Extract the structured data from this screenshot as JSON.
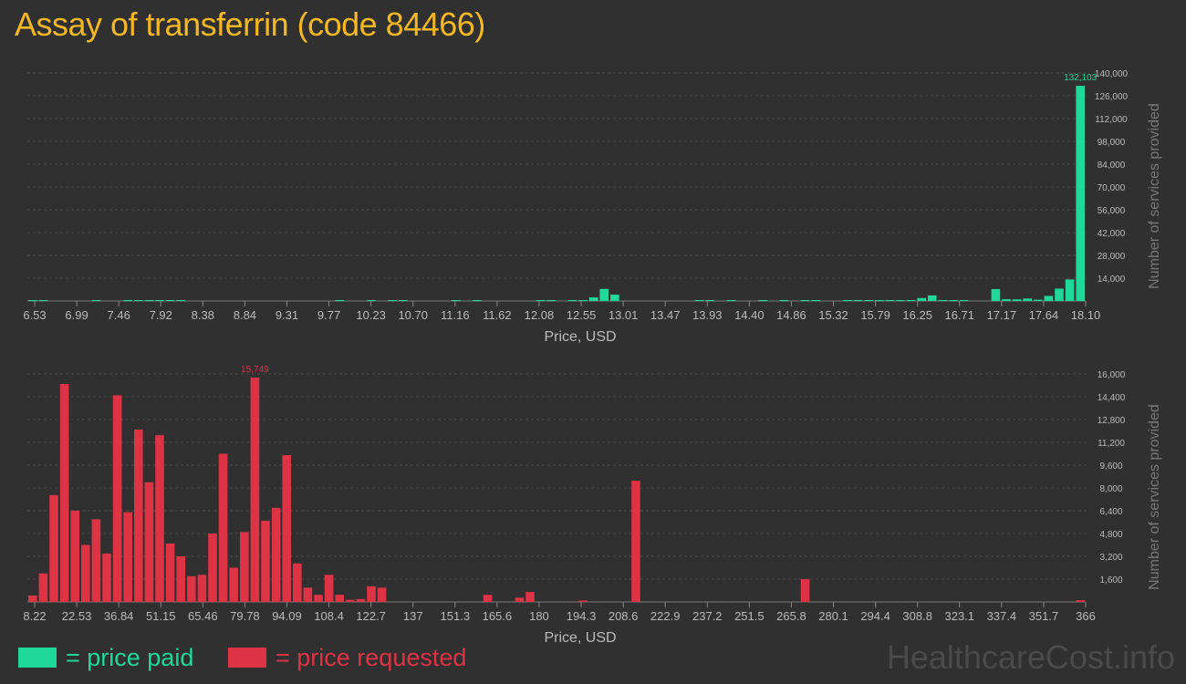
{
  "page": {
    "title": "Assay of transferrin (code 84466)"
  },
  "legend": {
    "paid_label": "= price paid",
    "requested_label": "= price requested",
    "paid_color": "#20d89a",
    "requested_color": "#dd3344"
  },
  "watermark": "HealthcareCost.info",
  "chart_data": [
    {
      "type": "bar",
      "name_hint": "paid",
      "color": "#20d89a",
      "xlabel": "Price, USD",
      "ylabel": "Number of services provided",
      "xlim": [
        6.53,
        18.1
      ],
      "ylim": [
        0,
        140000
      ],
      "x_ticks": [
        "6.53",
        "6.99",
        "7.46",
        "7.92",
        "8.38",
        "8.84",
        "9.31",
        "9.77",
        "10.23",
        "10.70",
        "11.16",
        "11.62",
        "12.08",
        "12.55",
        "13.01",
        "13.47",
        "13.93",
        "14.40",
        "14.86",
        "15.32",
        "15.79",
        "16.25",
        "16.71",
        "17.17",
        "17.64",
        "18.10"
      ],
      "y_ticks": [
        "14,000",
        "28,000",
        "42,000",
        "56,000",
        "70,000",
        "84,000",
        "98,000",
        "112,000",
        "126,000",
        "140,000"
      ],
      "peak_label": "132,103",
      "bin_count": 100,
      "bars": [
        {
          "bin": 0,
          "value": 500
        },
        {
          "bin": 1,
          "value": 400
        },
        {
          "bin": 6,
          "value": 300
        },
        {
          "bin": 9,
          "value": 300
        },
        {
          "bin": 10,
          "value": 300
        },
        {
          "bin": 11,
          "value": 300
        },
        {
          "bin": 12,
          "value": 300
        },
        {
          "bin": 13,
          "value": 300
        },
        {
          "bin": 14,
          "value": 300
        },
        {
          "bin": 29,
          "value": 200
        },
        {
          "bin": 32,
          "value": 200
        },
        {
          "bin": 34,
          "value": 200
        },
        {
          "bin": 35,
          "value": 200
        },
        {
          "bin": 40,
          "value": 200
        },
        {
          "bin": 42,
          "value": 200
        },
        {
          "bin": 48,
          "value": 300
        },
        {
          "bin": 49,
          "value": 300
        },
        {
          "bin": 51,
          "value": 200
        },
        {
          "bin": 52,
          "value": 200
        },
        {
          "bin": 53,
          "value": 2200
        },
        {
          "bin": 54,
          "value": 7400
        },
        {
          "bin": 55,
          "value": 3900
        },
        {
          "bin": 63,
          "value": 200
        },
        {
          "bin": 64,
          "value": 200
        },
        {
          "bin": 66,
          "value": 200
        },
        {
          "bin": 69,
          "value": 200
        },
        {
          "bin": 71,
          "value": 200
        },
        {
          "bin": 73,
          "value": 200
        },
        {
          "bin": 74,
          "value": 200
        },
        {
          "bin": 77,
          "value": 300
        },
        {
          "bin": 78,
          "value": 300
        },
        {
          "bin": 79,
          "value": 200
        },
        {
          "bin": 80,
          "value": 300
        },
        {
          "bin": 81,
          "value": 300
        },
        {
          "bin": 82,
          "value": 400
        },
        {
          "bin": 83,
          "value": 300
        },
        {
          "bin": 84,
          "value": 1800
        },
        {
          "bin": 85,
          "value": 3400
        },
        {
          "bin": 86,
          "value": 300
        },
        {
          "bin": 87,
          "value": 200
        },
        {
          "bin": 88,
          "value": 300
        },
        {
          "bin": 91,
          "value": 7300
        },
        {
          "bin": 92,
          "value": 1100
        },
        {
          "bin": 93,
          "value": 1000
        },
        {
          "bin": 94,
          "value": 1500
        },
        {
          "bin": 95,
          "value": 800
        },
        {
          "bin": 96,
          "value": 3100
        },
        {
          "bin": 97,
          "value": 7600
        },
        {
          "bin": 98,
          "value": 13200
        },
        {
          "bin": 99,
          "value": 132103
        }
      ]
    },
    {
      "type": "bar",
      "name_hint": "requested",
      "color": "#dd3344",
      "xlabel": "Price, USD",
      "ylabel": "Number of services provided",
      "xlim": [
        8.22,
        366
      ],
      "ylim": [
        0,
        16000
      ],
      "x_ticks": [
        "8.22",
        "22.53",
        "36.84",
        "51.15",
        "65.46",
        "79.78",
        "94.09",
        "108.4",
        "122.7",
        "137",
        "151.3",
        "165.6",
        "180",
        "194.3",
        "208.6",
        "222.9",
        "237.2",
        "251.5",
        "265.8",
        "280.1",
        "294.4",
        "308.8",
        "323.1",
        "337.4",
        "351.7",
        "366"
      ],
      "y_ticks": [
        "1,600",
        "3,200",
        "4,800",
        "6,400",
        "8,000",
        "9,600",
        "11,200",
        "12,800",
        "14,400",
        "16,000"
      ],
      "peak_label": "15,749",
      "bin_count": 100,
      "bars": [
        {
          "bin": 0,
          "value": 450
        },
        {
          "bin": 1,
          "value": 2000
        },
        {
          "bin": 2,
          "value": 7500
        },
        {
          "bin": 3,
          "value": 15300
        },
        {
          "bin": 4,
          "value": 6400
        },
        {
          "bin": 5,
          "value": 4000
        },
        {
          "bin": 6,
          "value": 5800
        },
        {
          "bin": 7,
          "value": 3400
        },
        {
          "bin": 8,
          "value": 14500
        },
        {
          "bin": 9,
          "value": 6300
        },
        {
          "bin": 10,
          "value": 12100
        },
        {
          "bin": 11,
          "value": 8400
        },
        {
          "bin": 12,
          "value": 11700
        },
        {
          "bin": 13,
          "value": 4100
        },
        {
          "bin": 14,
          "value": 3200
        },
        {
          "bin": 15,
          "value": 1800
        },
        {
          "bin": 16,
          "value": 1900
        },
        {
          "bin": 17,
          "value": 4800
        },
        {
          "bin": 18,
          "value": 10400
        },
        {
          "bin": 19,
          "value": 2400
        },
        {
          "bin": 20,
          "value": 4900
        },
        {
          "bin": 21,
          "value": 15749
        },
        {
          "bin": 22,
          "value": 5700
        },
        {
          "bin": 23,
          "value": 6600
        },
        {
          "bin": 24,
          "value": 10300
        },
        {
          "bin": 25,
          "value": 2700
        },
        {
          "bin": 26,
          "value": 1000
        },
        {
          "bin": 27,
          "value": 500
        },
        {
          "bin": 28,
          "value": 1900
        },
        {
          "bin": 29,
          "value": 500
        },
        {
          "bin": 30,
          "value": 150
        },
        {
          "bin": 31,
          "value": 200
        },
        {
          "bin": 32,
          "value": 1100
        },
        {
          "bin": 33,
          "value": 1000
        },
        {
          "bin": 43,
          "value": 500
        },
        {
          "bin": 46,
          "value": 300
        },
        {
          "bin": 47,
          "value": 700
        },
        {
          "bin": 52,
          "value": 100
        },
        {
          "bin": 57,
          "value": 8500
        },
        {
          "bin": 73,
          "value": 1600
        },
        {
          "bin": 99,
          "value": 120
        }
      ]
    }
  ]
}
